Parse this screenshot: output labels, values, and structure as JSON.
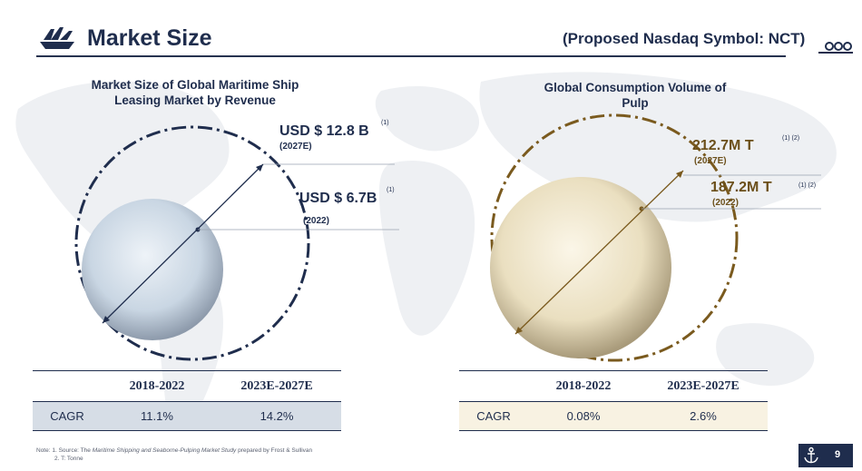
{
  "header": {
    "title": "Market Size",
    "symbol": "(Proposed Nasdaq Symbol: NCT)",
    "logo_icon": "ship-icon",
    "wave_icon": "waves-icon"
  },
  "left_panel": {
    "title_line1": "Market Size of Global Maritime Ship",
    "title_line2": "Leasing Market by Revenue",
    "value_2027": "USD $ 12.8 B",
    "label_2027": "(2027E)",
    "note_2027": "(1)",
    "value_2022": "USD $ 6.7B",
    "label_2022": "(2022)",
    "note_2022": "(1)",
    "sphere_color": "#c9d6e3",
    "ring_color": "#1f2d4d"
  },
  "right_panel": {
    "title_line1": "Global Consumption Volume of",
    "title_line2": "Pulp",
    "value_2027": "212.7M T",
    "label_2027": "(2027E)",
    "note_2027": "(1) (2)",
    "value_2022": "187.2M T",
    "label_2022": "(2022)",
    "note_2022": "(1) (2)",
    "sphere_color": "#eadfc0",
    "ring_color": "#7a5a1e",
    "text_color": "#6b4f1a"
  },
  "left_table": {
    "headers": [
      "",
      "2018-2022",
      "2023E-2027E"
    ],
    "row": [
      "CAGR",
      "11.1%",
      "14.2%"
    ]
  },
  "right_table": {
    "headers": [
      "",
      "2018-2022",
      "2023E-2027E"
    ],
    "row": [
      "CAGR",
      "0.08%",
      "2.6%"
    ]
  },
  "note": {
    "prefix": "Note:",
    "line1_a": "1. Source: The ",
    "line1_italic": "Maritime Shipping and Seaborne-Pulping Market Study",
    "line1_b": " prepared by Frost & Sullivan",
    "line2": "2. T: Tonne"
  },
  "footer": {
    "page_number": "9",
    "anchor_icon": "anchor-icon",
    "badge_color": "#1f2d4d"
  }
}
